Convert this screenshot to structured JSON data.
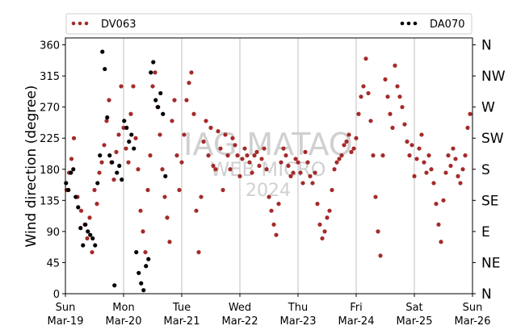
{
  "chart_data": {
    "type": "scatter",
    "title": "",
    "xlabel": "",
    "ylabel": "Wind direction (degree)",
    "xlim": [
      "2023-03-19 00:00",
      "2023-03-26 00:00"
    ],
    "ylim": [
      0,
      370
    ],
    "yticks": [
      0,
      45,
      90,
      135,
      180,
      225,
      270,
      315,
      360
    ],
    "ytick_labels": [
      "0",
      "45",
      "90",
      "135",
      "180",
      "225",
      "270",
      "315",
      "360"
    ],
    "xticks": [
      {
        "day": "Sun",
        "date": "Mar-19"
      },
      {
        "day": "Mon",
        "date": "Mar-20"
      },
      {
        "day": "Tue",
        "date": "Mar-21"
      },
      {
        "day": "Wed",
        "date": "Mar-22"
      },
      {
        "day": "Thu",
        "date": "Mar-23"
      },
      {
        "day": "Fri",
        "date": "Mar-24"
      },
      {
        "day": "Sat",
        "date": "Mar-25"
      },
      {
        "day": "Sun",
        "date": "Mar-26"
      }
    ],
    "right_axis_labels": [
      {
        "value": 0,
        "label": "N"
      },
      {
        "value": 45,
        "label": "NE"
      },
      {
        "value": 90,
        "label": "E"
      },
      {
        "value": 135,
        "label": "SE"
      },
      {
        "value": 180,
        "label": "S"
      },
      {
        "value": 225,
        "label": "SW"
      },
      {
        "value": 270,
        "label": "W"
      },
      {
        "value": 315,
        "label": "NW"
      },
      {
        "value": 360,
        "label": "N"
      }
    ],
    "vertical_grid": true,
    "horizontal_grid": false,
    "legend_placement": "top, above plot",
    "watermark": [
      "IAG MATAO",
      "WEB MICRO",
      "2024"
    ],
    "series": [
      {
        "name": "DV063",
        "color": "#a52a2a",
        "x": [
          "2023-03-19 00:30",
          "2023-03-19 01:30",
          "2023-03-19 02:30",
          "2023-03-19 03:30",
          "2023-03-19 05:00",
          "2023-03-19 06:30",
          "2023-03-19 08:00",
          "2023-03-19 09:00",
          "2023-03-19 10:00",
          "2023-03-19 11:00",
          "2023-03-19 12:00",
          "2023-03-19 13:00",
          "2023-03-19 14:00",
          "2023-03-19 15:00",
          "2023-03-19 16:00",
          "2023-03-19 17:00",
          "2023-03-19 18:00",
          "2023-03-19 19:00",
          "2023-03-19 20:00",
          "2023-03-19 21:00",
          "2023-03-19 22:00",
          "2023-03-19 23:00",
          "2023-03-20 00:00",
          "2023-03-20 01:00",
          "2023-03-20 02:00",
          "2023-03-20 03:00",
          "2023-03-20 04:00",
          "2023-03-20 05:00",
          "2023-03-20 06:00",
          "2023-03-20 07:00",
          "2023-03-20 08:00",
          "2023-03-20 09:00",
          "2023-03-20 10:00",
          "2023-03-20 11:00",
          "2023-03-20 12:00",
          "2023-03-20 13:00",
          "2023-03-20 14:00",
          "2023-03-20 15:00",
          "2023-03-20 16:00",
          "2023-03-20 17:00",
          "2023-03-20 18:00",
          "2023-03-20 19:00",
          "2023-03-20 20:00",
          "2023-03-20 21:00",
          "2023-03-20 22:00",
          "2023-03-20 23:00",
          "2023-03-21 00:00",
          "2023-03-21 01:00",
          "2023-03-21 02:00",
          "2023-03-21 03:00",
          "2023-03-21 04:00",
          "2023-03-21 05:00",
          "2023-03-21 06:00",
          "2023-03-21 07:00",
          "2023-03-21 08:00",
          "2023-03-21 09:00",
          "2023-03-21 10:00",
          "2023-03-21 11:00",
          "2023-03-21 12:00",
          "2023-03-21 13:00",
          "2023-03-21 14:00",
          "2023-03-21 15:00",
          "2023-03-21 16:00",
          "2023-03-21 17:00",
          "2023-03-21 18:00",
          "2023-03-21 19:00",
          "2023-03-21 20:00",
          "2023-03-21 21:00",
          "2023-03-21 22:00",
          "2023-03-21 23:00",
          "2023-03-22 00:00",
          "2023-03-22 01:00",
          "2023-03-22 02:00",
          "2023-03-22 03:00",
          "2023-03-22 04:00",
          "2023-03-22 05:00",
          "2023-03-22 06:00",
          "2023-03-22 07:00",
          "2023-03-22 08:00",
          "2023-03-22 09:00",
          "2023-03-22 10:00",
          "2023-03-22 11:00",
          "2023-03-22 12:00",
          "2023-03-22 13:00",
          "2023-03-22 14:00",
          "2023-03-22 15:00",
          "2023-03-22 16:00",
          "2023-03-22 17:00",
          "2023-03-22 18:00",
          "2023-03-22 19:00",
          "2023-03-22 20:00",
          "2023-03-22 21:00",
          "2023-03-22 22:00",
          "2023-03-22 23:00",
          "2023-03-23 00:00",
          "2023-03-23 01:00",
          "2023-03-23 02:00",
          "2023-03-23 03:00",
          "2023-03-23 04:00",
          "2023-03-23 05:00",
          "2023-03-23 06:00",
          "2023-03-23 07:00",
          "2023-03-23 08:00",
          "2023-03-23 09:00",
          "2023-03-23 10:00",
          "2023-03-23 11:00",
          "2023-03-23 12:00",
          "2023-03-23 13:00",
          "2023-03-23 14:00",
          "2023-03-23 15:00",
          "2023-03-23 16:00",
          "2023-03-23 17:00",
          "2023-03-23 18:00",
          "2023-03-23 19:00",
          "2023-03-23 20:00",
          "2023-03-23 21:00",
          "2023-03-23 22:00",
          "2023-03-23 23:00",
          "2023-03-24 00:00",
          "2023-03-24 01:00",
          "2023-03-24 02:00",
          "2023-03-24 03:00",
          "2023-03-24 04:00",
          "2023-03-24 05:00",
          "2023-03-24 06:00",
          "2023-03-24 07:00",
          "2023-03-24 08:00",
          "2023-03-24 09:00",
          "2023-03-24 10:00",
          "2023-03-24 11:00",
          "2023-03-24 12:00",
          "2023-03-24 13:00",
          "2023-03-24 14:00",
          "2023-03-24 15:00",
          "2023-03-24 16:00",
          "2023-03-24 17:00",
          "2023-03-24 18:00",
          "2023-03-24 19:00",
          "2023-03-24 20:00",
          "2023-03-24 21:00",
          "2023-03-24 22:00",
          "2023-03-24 23:00",
          "2023-03-25 00:00",
          "2023-03-25 01:00",
          "2023-03-25 02:00",
          "2023-03-25 03:00",
          "2023-03-25 04:00",
          "2023-03-25 05:00",
          "2023-03-25 06:00",
          "2023-03-25 07:00",
          "2023-03-25 08:00",
          "2023-03-25 09:00",
          "2023-03-25 10:00",
          "2023-03-25 11:00",
          "2023-03-25 12:00",
          "2023-03-25 13:00",
          "2023-03-25 14:00",
          "2023-03-25 15:00",
          "2023-03-25 16:00",
          "2023-03-25 17:00",
          "2023-03-25 18:00",
          "2023-03-25 19:00",
          "2023-03-25 20:00",
          "2023-03-25 21:00",
          "2023-03-25 22:00",
          "2023-03-25 23:00"
        ],
        "y": [
          150,
          175,
          195,
          225,
          140,
          120,
          100,
          80,
          110,
          60,
          150,
          130,
          175,
          190,
          215,
          250,
          280,
          190,
          165,
          205,
          230,
          300,
          240,
          210,
          190,
          260,
          300,
          225,
          180,
          120,
          90,
          60,
          150,
          200,
          300,
          320,
          270,
          230,
          180,
          140,
          110,
          75,
          250,
          280,
          200,
          150,
          190,
          230,
          280,
          305,
          320,
          260,
          120,
          60,
          140,
          220,
          250,
          200,
          240,
          185,
          180,
          235,
          210,
          150,
          230,
          200,
          180,
          225,
          215,
          200,
          170,
          195,
          210,
          200,
          190,
          175,
          200,
          205,
          185,
          195,
          210,
          180,
          140,
          120,
          100,
          85,
          130,
          190,
          210,
          200,
          185,
          170,
          175,
          195,
          190,
          175,
          160,
          205,
          190,
          170,
          160,
          175,
          130,
          100,
          80,
          90,
          110,
          120,
          150,
          180,
          190,
          195,
          200,
          215,
          220,
          230,
          205,
          210,
          225,
          260,
          285,
          300,
          340,
          290,
          250,
          200,
          140,
          90,
          55,
          200,
          310,
          285,
          260,
          240,
          330,
          300,
          285,
          270,
          245,
          220,
          200,
          215,
          170,
          195,
          210,
          230,
          190,
          175,
          200,
          180,
          160,
          130,
          100,
          75,
          135,
          175,
          200,
          185,
          210,
          195,
          170,
          160,
          180,
          200,
          240,
          260
        ]
      },
      {
        "name": "DA070",
        "color": "#000000",
        "x": [
          "2023-03-19 00:15",
          "2023-03-19 01:15",
          "2023-03-19 02:15",
          "2023-03-19 03:15",
          "2023-03-19 04:15",
          "2023-03-19 05:15",
          "2023-03-19 06:15",
          "2023-03-19 07:15",
          "2023-03-19 08:15",
          "2023-03-19 09:15",
          "2023-03-19 10:15",
          "2023-03-19 11:15",
          "2023-03-19 12:15",
          "2023-03-19 13:15",
          "2023-03-19 14:15",
          "2023-03-19 15:15",
          "2023-03-19 16:15",
          "2023-03-19 17:15",
          "2023-03-19 18:15",
          "2023-03-19 19:15",
          "2023-03-19 20:15",
          "2023-03-19 21:15",
          "2023-03-19 22:15",
          "2023-03-19 23:15",
          "2023-03-20 00:15",
          "2023-03-20 01:15",
          "2023-03-20 02:15",
          "2023-03-20 03:15",
          "2023-03-20 04:15",
          "2023-03-20 05:15",
          "2023-03-20 06:15",
          "2023-03-20 07:15",
          "2023-03-20 08:15",
          "2023-03-20 09:15",
          "2023-03-20 10:15",
          "2023-03-20 11:15",
          "2023-03-20 12:15",
          "2023-03-20 13:15",
          "2023-03-20 14:15",
          "2023-03-20 15:15",
          "2023-03-20 16:15",
          "2023-03-20 17:15"
        ],
        "y": [
          160,
          150,
          175,
          180,
          140,
          125,
          95,
          70,
          100,
          90,
          85,
          80,
          70,
          160,
          200,
          350,
          325,
          255,
          200,
          190,
          12,
          175,
          185,
          165,
          250,
          240,
          220,
          230,
          210,
          60,
          30,
          15,
          5,
          40,
          50,
          320,
          335,
          280,
          270,
          290,
          260,
          170
        ]
      }
    ]
  }
}
